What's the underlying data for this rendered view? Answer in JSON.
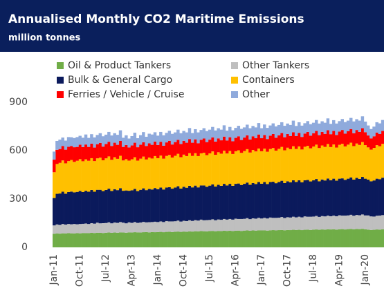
{
  "chart_data": {
    "type": "stacked_bar",
    "title": "Annualised Monthly CO2 Maritime Emissions",
    "subtitle": "million tonnes",
    "categories": [
      "Jan-11",
      null,
      null,
      null,
      null,
      null,
      null,
      null,
      null,
      "Oct-11",
      null,
      null,
      null,
      null,
      null,
      null,
      null,
      null,
      "Jul-12",
      null,
      null,
      null,
      null,
      null,
      null,
      null,
      null,
      "Apr-13",
      null,
      null,
      null,
      null,
      null,
      null,
      null,
      null,
      "Jan-14",
      null,
      null,
      null,
      null,
      null,
      null,
      null,
      null,
      "Oct-14",
      null,
      null,
      null,
      null,
      null,
      null,
      null,
      null,
      "Jul-15",
      null,
      null,
      null,
      null,
      null,
      null,
      null,
      null,
      "Apr-16",
      null,
      null,
      null,
      null,
      null,
      null,
      null,
      null,
      "Jan-17",
      null,
      null,
      null,
      null,
      null,
      null,
      null,
      null,
      "Oct-17",
      null,
      null,
      null,
      null,
      null,
      null,
      null,
      null,
      "Jul-18",
      null,
      null,
      null,
      null,
      null,
      null,
      null,
      null,
      "Apr-19",
      null,
      null,
      null,
      null,
      null,
      null,
      null,
      null,
      "Jan-20",
      null,
      null,
      null,
      null,
      null,
      null
    ],
    "ylim": [
      0,
      900
    ],
    "yticks": [
      0,
      300,
      600,
      900
    ],
    "series": [
      {
        "name": "Oil & Product Tankers",
        "color": "#70ad47",
        "values": [
          84,
          86,
          85,
          87,
          86,
          88,
          87,
          86,
          88,
          87,
          89,
          88,
          88,
          90,
          89,
          91,
          90,
          89,
          91,
          92,
          90,
          92,
          91,
          93,
          92,
          91,
          93,
          92,
          94,
          93,
          92,
          94,
          95,
          93,
          95,
          94,
          95,
          96,
          94,
          96,
          97,
          95,
          97,
          98,
          96,
          98,
          97,
          99,
          98,
          100,
          99,
          101,
          100,
          99,
          101,
          102,
          100,
          102,
          101,
          103,
          102,
          103,
          101,
          103,
          104,
          102,
          104,
          105,
          103,
          105,
          104,
          106,
          105,
          106,
          104,
          106,
          107,
          105,
          107,
          108,
          106,
          108,
          107,
          109,
          108,
          109,
          107,
          109,
          110,
          108,
          110,
          111,
          109,
          111,
          110,
          112,
          111,
          112,
          110,
          112,
          113,
          111,
          113,
          114,
          112,
          114,
          113,
          115,
          112,
          110,
          108,
          109,
          111,
          110,
          112
        ]
      },
      {
        "name": "Other Tankers",
        "color": "#bfbfbf",
        "values": [
          52,
          56,
          54,
          58,
          55,
          57,
          56,
          59,
          55,
          58,
          57,
          60,
          57,
          60,
          58,
          62,
          59,
          61,
          60,
          63,
          59,
          62,
          61,
          64,
          61,
          58,
          62,
          60,
          63,
          59,
          62,
          64,
          60,
          63,
          62,
          65,
          62,
          65,
          63,
          67,
          64,
          66,
          65,
          68,
          64,
          67,
          66,
          69,
          66,
          69,
          67,
          71,
          68,
          70,
          69,
          72,
          68,
          71,
          70,
          73,
          70,
          73,
          71,
          75,
          72,
          74,
          73,
          76,
          72,
          75,
          74,
          77,
          74,
          77,
          75,
          79,
          76,
          78,
          77,
          80,
          76,
          79,
          78,
          81,
          78,
          81,
          79,
          83,
          80,
          82,
          81,
          84,
          80,
          83,
          82,
          85,
          82,
          85,
          83,
          87,
          84,
          86,
          85,
          88,
          84,
          87,
          86,
          89,
          86,
          88,
          84,
          82,
          85,
          87,
          88
        ]
      },
      {
        "name": "Bulk & General Cargo",
        "color": "#0b1a5c",
        "values": [
          170,
          190,
          195,
          200,
          192,
          198,
          203,
          196,
          201,
          205,
          197,
          203,
          200,
          206,
          198,
          204,
          208,
          199,
          205,
          209,
          201,
          207,
          203,
          210,
          198,
          204,
          196,
          202,
          206,
          197,
          203,
          208,
          200,
          206,
          202,
          209,
          204,
          210,
          202,
          208,
          212,
          203,
          209,
          213,
          205,
          211,
          207,
          214,
          208,
          214,
          206,
          212,
          216,
          207,
          213,
          217,
          209,
          215,
          211,
          218,
          212,
          218,
          210,
          216,
          220,
          211,
          217,
          221,
          213,
          219,
          215,
          222,
          216,
          222,
          214,
          220,
          224,
          215,
          221,
          225,
          217,
          223,
          219,
          226,
          220,
          226,
          218,
          224,
          228,
          219,
          225,
          229,
          221,
          227,
          223,
          230,
          223,
          229,
          221,
          227,
          231,
          222,
          228,
          232,
          224,
          230,
          226,
          233,
          228,
          222,
          218,
          224,
          230,
          226,
          232
        ]
      },
      {
        "name": "Containers",
        "color": "#ffc000",
        "values": [
          160,
          185,
          190,
          194,
          188,
          192,
          196,
          189,
          193,
          197,
          191,
          195,
          192,
          197,
          190,
          195,
          199,
          191,
          196,
          200,
          193,
          198,
          194,
          201,
          188,
          194,
          187,
          192,
          196,
          189,
          193,
          197,
          190,
          195,
          192,
          198,
          192,
          198,
          191,
          196,
          200,
          193,
          197,
          201,
          194,
          199,
          196,
          202,
          195,
          201,
          194,
          199,
          203,
          196,
          200,
          204,
          197,
          202,
          199,
          205,
          198,
          204,
          197,
          202,
          206,
          199,
          203,
          207,
          200,
          205,
          202,
          208,
          201,
          207,
          200,
          205,
          209,
          202,
          206,
          210,
          203,
          208,
          205,
          211,
          204,
          210,
          203,
          208,
          212,
          205,
          209,
          213,
          206,
          211,
          208,
          214,
          206,
          212,
          205,
          210,
          214,
          207,
          211,
          215,
          208,
          213,
          210,
          216,
          208,
          200,
          196,
          202,
          208,
          204,
          210
        ]
      },
      {
        "name": "Ferries / Vehicle / Cruise",
        "color": "#ff0000",
        "values": [
          78,
          88,
          86,
          90,
          85,
          89,
          87,
          91,
          86,
          90,
          88,
          92,
          86,
          90,
          84,
          88,
          92,
          85,
          89,
          91,
          86,
          90,
          87,
          92,
          84,
          88,
          82,
          86,
          90,
          83,
          87,
          89,
          84,
          88,
          85,
          90,
          82,
          86,
          80,
          84,
          88,
          81,
          85,
          87,
          82,
          86,
          83,
          88,
          82,
          86,
          80,
          84,
          88,
          81,
          85,
          87,
          82,
          86,
          83,
          88,
          81,
          85,
          79,
          83,
          87,
          80,
          84,
          86,
          81,
          85,
          82,
          87,
          81,
          85,
          79,
          83,
          87,
          80,
          84,
          86,
          81,
          85,
          82,
          87,
          80,
          84,
          78,
          82,
          86,
          79,
          83,
          85,
          80,
          84,
          81,
          86,
          80,
          84,
          78,
          82,
          86,
          79,
          83,
          85,
          80,
          84,
          81,
          86,
          80,
          74,
          70,
          72,
          78,
          76,
          80
        ]
      },
      {
        "name": "Other",
        "color": "#8faadc",
        "values": [
          50,
          55,
          58,
          52,
          56,
          60,
          54,
          57,
          61,
          55,
          58,
          62,
          56,
          59,
          63,
          57,
          60,
          64,
          58,
          61,
          65,
          59,
          62,
          66,
          57,
          60,
          55,
          58,
          62,
          56,
          59,
          63,
          57,
          60,
          64,
          58,
          58,
          61,
          65,
          59,
          62,
          66,
          60,
          63,
          67,
          61,
          64,
          68,
          60,
          63,
          67,
          61,
          64,
          68,
          62,
          65,
          69,
          63,
          66,
          70,
          61,
          64,
          68,
          62,
          65,
          69,
          63,
          66,
          70,
          64,
          67,
          71,
          62,
          65,
          69,
          63,
          66,
          70,
          64,
          67,
          71,
          65,
          68,
          72,
          63,
          66,
          70,
          64,
          67,
          71,
          65,
          68,
          72,
          66,
          69,
          73,
          64,
          67,
          71,
          65,
          68,
          72,
          66,
          69,
          73,
          67,
          70,
          74,
          66,
          62,
          58,
          60,
          64,
          66,
          68
        ]
      }
    ]
  }
}
